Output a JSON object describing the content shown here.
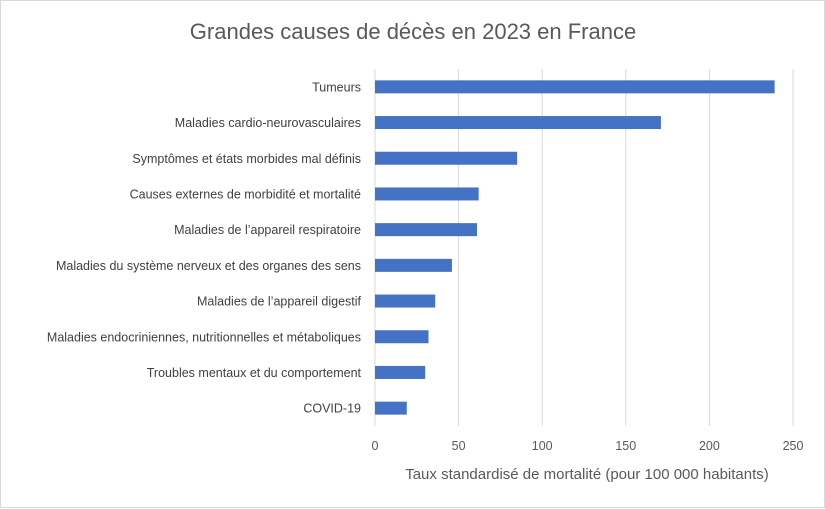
{
  "chart_data": {
    "type": "bar",
    "orientation": "horizontal",
    "title": "Grandes causes de décès en 2023 en France",
    "xlabel": "Taux standardisé de mortalité (pour 100 000 habitants)",
    "ylabel": "",
    "xlim": [
      0,
      250
    ],
    "xticks": [
      "0",
      "50",
      "100",
      "150",
      "200",
      "250"
    ],
    "grid": "vertical",
    "legend": "none",
    "bar_color": "#4472C4",
    "grid_color": "#d9d9d9",
    "categories": [
      "Tumeurs",
      "Maladies cardio-neurovasculaires",
      "Symptômes et états morbides mal définis",
      "Causes externes de morbidité et mortalité",
      "Maladies de l’appareil respiratoire",
      "Maladies du système nerveux et des organes des sens",
      "Maladies de l’appareil digestif",
      "Maladies endocriniennes, nutritionnelles et métaboliques",
      "Troubles mentaux et du comportement",
      "COVID-19"
    ],
    "values": [
      239,
      171,
      85,
      62,
      61,
      46,
      36,
      32,
      30,
      19
    ]
  }
}
